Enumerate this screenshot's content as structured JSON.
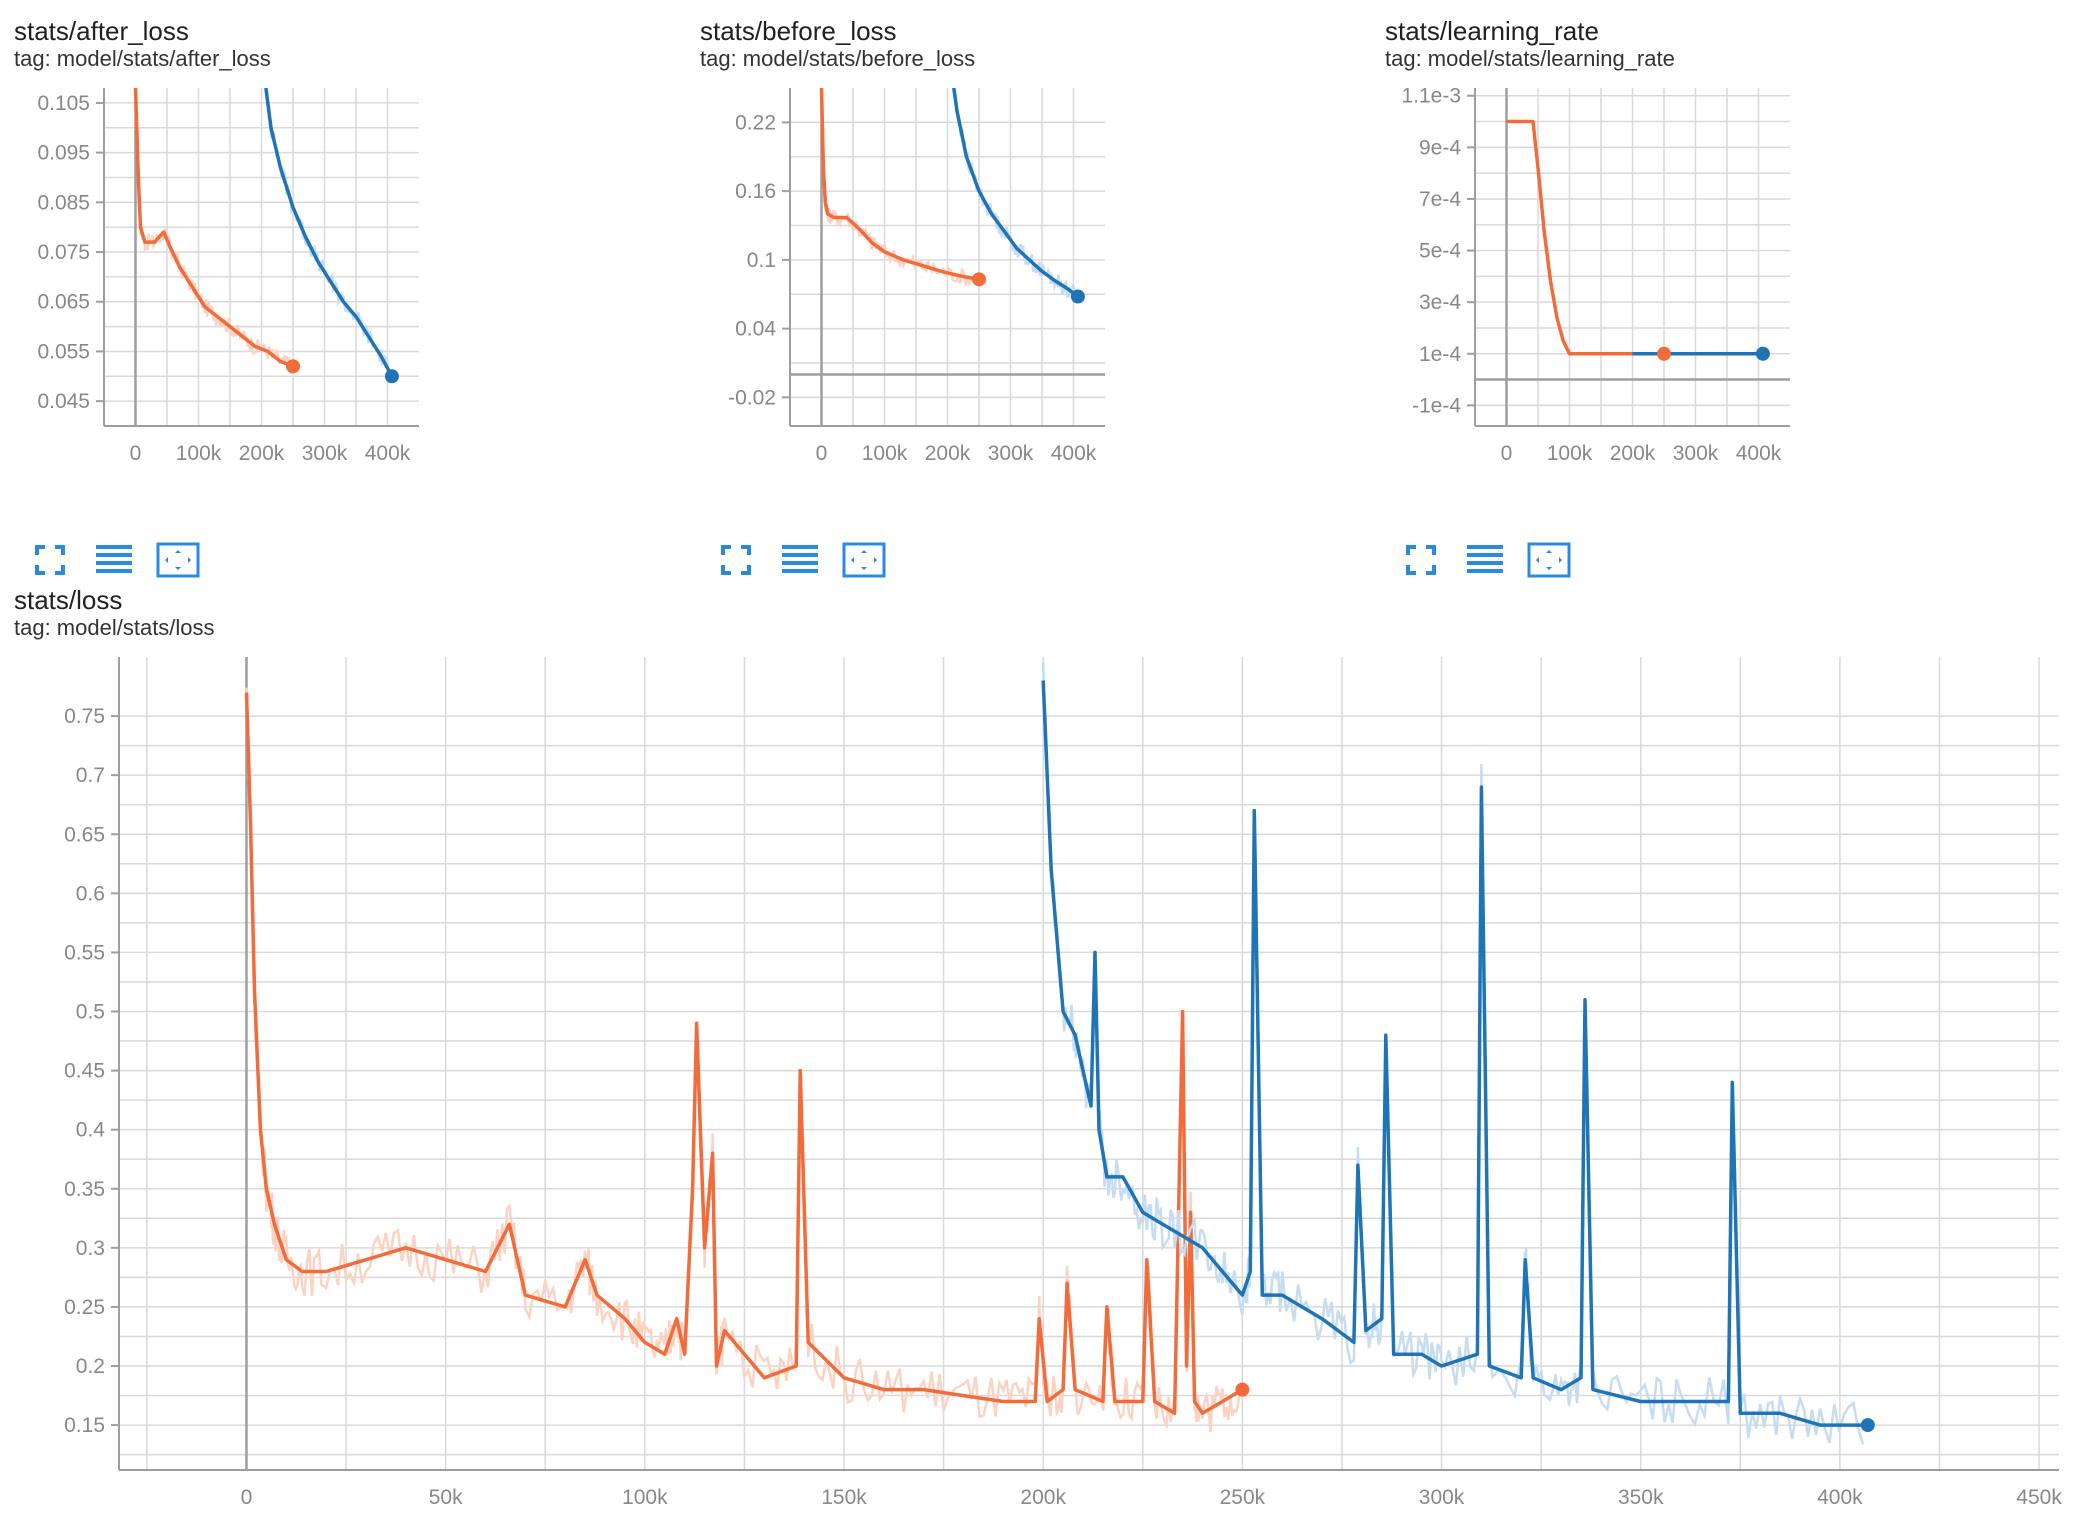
{
  "colors": {
    "run_orange": "#f26b3a",
    "run_orange_light": "#fbd3c3",
    "run_blue": "#1f73b7",
    "run_blue_light": "#c6dcef",
    "toolbar_blue": "#2a8ae0"
  },
  "cards": [
    {
      "title": "stats/after_loss",
      "tag": "tag: model/stats/after_loss",
      "toolbar": [
        "fullscreen-icon",
        "data-list-icon",
        "fit-domain-icon"
      ]
    },
    {
      "title": "stats/before_loss",
      "tag": "tag: model/stats/before_loss",
      "toolbar": [
        "fullscreen-icon",
        "data-list-icon",
        "fit-domain-icon"
      ]
    },
    {
      "title": "stats/learning_rate",
      "tag": "tag: model/stats/learning_rate",
      "toolbar": [
        "fullscreen-icon",
        "data-list-icon",
        "fit-domain-icon"
      ]
    },
    {
      "title": "stats/loss",
      "tag": "tag: model/stats/loss"
    }
  ],
  "chart_data": [
    {
      "type": "line",
      "grid": true,
      "xlim": [
        -50000,
        450000
      ],
      "ylim": [
        0.04,
        0.108
      ],
      "xticks": [
        {
          "v": 0,
          "label": "0"
        },
        {
          "v": 100000,
          "label": "100k"
        },
        {
          "v": 200000,
          "label": "200k"
        },
        {
          "v": 300000,
          "label": "300k"
        },
        {
          "v": 400000,
          "label": "400k"
        }
      ],
      "yticks": [
        {
          "v": 0.105,
          "label": "0.105"
        },
        {
          "v": 0.095,
          "label": "0.095"
        },
        {
          "v": 0.085,
          "label": "0.085"
        },
        {
          "v": 0.075,
          "label": "0.075"
        },
        {
          "v": 0.065,
          "label": "0.065"
        },
        {
          "v": 0.055,
          "label": "0.055"
        },
        {
          "v": 0.045,
          "label": "0.045"
        }
      ],
      "series": [
        {
          "color": "orange",
          "x": [
            0,
            5000,
            8000,
            15000,
            30000,
            45000,
            55000,
            70000,
            90000,
            110000,
            130000,
            150000,
            170000,
            190000,
            210000,
            230000,
            250000
          ],
          "y": [
            0.108,
            0.088,
            0.08,
            0.077,
            0.077,
            0.079,
            0.076,
            0.072,
            0.068,
            0.064,
            0.062,
            0.06,
            0.058,
            0.056,
            0.055,
            0.053,
            0.052
          ]
        },
        {
          "color": "blue",
          "x": [
            207000,
            215000,
            230000,
            250000,
            270000,
            290000,
            310000,
            330000,
            350000,
            370000,
            390000,
            407000
          ],
          "y": [
            0.108,
            0.1,
            0.092,
            0.084,
            0.078,
            0.073,
            0.069,
            0.065,
            0.062,
            0.058,
            0.054,
            0.05
          ]
        }
      ]
    },
    {
      "type": "line",
      "grid": true,
      "xlim": [
        -50000,
        450000
      ],
      "ylim": [
        -0.045,
        0.25
      ],
      "xticks": [
        {
          "v": 0,
          "label": "0"
        },
        {
          "v": 100000,
          "label": "100k"
        },
        {
          "v": 200000,
          "label": "200k"
        },
        {
          "v": 300000,
          "label": "300k"
        },
        {
          "v": 400000,
          "label": "400k"
        }
      ],
      "yticks": [
        {
          "v": 0.22,
          "label": "0.22"
        },
        {
          "v": 0.16,
          "label": "0.16"
        },
        {
          "v": 0.1,
          "label": "0.1"
        },
        {
          "v": 0.04,
          "label": "0.04"
        },
        {
          "v": -0.02,
          "label": "-0.02"
        }
      ],
      "series": [
        {
          "color": "orange",
          "x": [
            0,
            3000,
            6000,
            10000,
            20000,
            40000,
            60000,
            80000,
            100000,
            130000,
            160000,
            190000,
            220000,
            250000
          ],
          "y": [
            0.25,
            0.18,
            0.15,
            0.14,
            0.137,
            0.137,
            0.127,
            0.115,
            0.107,
            0.1,
            0.095,
            0.09,
            0.086,
            0.083
          ]
        },
        {
          "color": "blue",
          "x": [
            210000,
            215000,
            230000,
            250000,
            270000,
            290000,
            310000,
            330000,
            350000,
            370000,
            390000,
            407000
          ],
          "y": [
            0.25,
            0.23,
            0.19,
            0.16,
            0.14,
            0.125,
            0.11,
            0.1,
            0.09,
            0.082,
            0.075,
            0.068
          ]
        }
      ]
    },
    {
      "type": "line",
      "grid": true,
      "xlim": [
        -50000,
        450000
      ],
      "ylim": [
        -0.00018,
        0.00113
      ],
      "xticks": [
        {
          "v": 0,
          "label": "0"
        },
        {
          "v": 100000,
          "label": "100k"
        },
        {
          "v": 200000,
          "label": "200k"
        },
        {
          "v": 300000,
          "label": "300k"
        },
        {
          "v": 400000,
          "label": "400k"
        }
      ],
      "yticks": [
        {
          "v": 0.0011,
          "label": "1.1e-3"
        },
        {
          "v": 0.0009,
          "label": "9e-4"
        },
        {
          "v": 0.0007,
          "label": "7e-4"
        },
        {
          "v": 0.0005,
          "label": "5e-4"
        },
        {
          "v": 0.0003,
          "label": "3e-4"
        },
        {
          "v": 0.0001,
          "label": "1e-4"
        },
        {
          "v": -0.0001,
          "label": "-1e-4"
        }
      ],
      "series": [
        {
          "color": "orange",
          "x": [
            0,
            42000,
            50000,
            60000,
            70000,
            80000,
            90000,
            100000,
            200000,
            250000
          ],
          "y": [
            0.001,
            0.001,
            0.00082,
            0.00057,
            0.00038,
            0.00024,
            0.00015,
            0.0001,
            0.0001,
            0.0001
          ]
        },
        {
          "color": "blue",
          "x": [
            200000,
            407000
          ],
          "y": [
            0.0001,
            0.0001
          ]
        }
      ]
    },
    {
      "type": "line",
      "grid": true,
      "xlim": [
        -32000,
        455000
      ],
      "ylim": [
        0.112,
        0.8
      ],
      "xticks": [
        {
          "v": 0,
          "label": "0"
        },
        {
          "v": 50000,
          "label": "50k"
        },
        {
          "v": 100000,
          "label": "100k"
        },
        {
          "v": 150000,
          "label": "150k"
        },
        {
          "v": 200000,
          "label": "200k"
        },
        {
          "v": 250000,
          "label": "250k"
        },
        {
          "v": 300000,
          "label": "300k"
        },
        {
          "v": 350000,
          "label": "350k"
        },
        {
          "v": 400000,
          "label": "400k"
        },
        {
          "v": 450000,
          "label": "450k"
        }
      ],
      "yticks": [
        {
          "v": 0.75,
          "label": "0.75"
        },
        {
          "v": 0.7,
          "label": "0.7"
        },
        {
          "v": 0.65,
          "label": "0.65"
        },
        {
          "v": 0.6,
          "label": "0.6"
        },
        {
          "v": 0.55,
          "label": "0.55"
        },
        {
          "v": 0.5,
          "label": "0.5"
        },
        {
          "v": 0.45,
          "label": "0.45"
        },
        {
          "v": 0.4,
          "label": "0.4"
        },
        {
          "v": 0.35,
          "label": "0.35"
        },
        {
          "v": 0.3,
          "label": "0.3"
        },
        {
          "v": 0.25,
          "label": "0.25"
        },
        {
          "v": 0.2,
          "label": "0.2"
        },
        {
          "v": 0.15,
          "label": "0.15"
        }
      ],
      "series": [
        {
          "color": "orange",
          "x": [
            0,
            1000,
            2000,
            3500,
            5000,
            7000,
            10000,
            14000,
            20000,
            30000,
            40000,
            50000,
            60000,
            66000,
            70000,
            80000,
            85000,
            88000,
            95000,
            100000,
            105000,
            108000,
            110000,
            112000,
            113000,
            115000,
            117000,
            118000,
            120000,
            130000,
            138000,
            139000,
            141000,
            150000,
            160000,
            170000,
            180000,
            190000,
            198000,
            199000,
            201000,
            205000,
            206000,
            208000,
            215000,
            216000,
            218000,
            225000,
            226000,
            228000,
            233000,
            235000,
            236000,
            237000,
            238000,
            240000,
            245000,
            250000
          ],
          "y": [
            0.77,
            0.66,
            0.52,
            0.4,
            0.35,
            0.32,
            0.29,
            0.28,
            0.28,
            0.29,
            0.3,
            0.29,
            0.28,
            0.32,
            0.26,
            0.25,
            0.29,
            0.26,
            0.24,
            0.22,
            0.21,
            0.24,
            0.21,
            0.35,
            0.49,
            0.3,
            0.38,
            0.2,
            0.23,
            0.19,
            0.2,
            0.45,
            0.22,
            0.19,
            0.18,
            0.18,
            0.175,
            0.17,
            0.17,
            0.24,
            0.17,
            0.18,
            0.27,
            0.18,
            0.17,
            0.25,
            0.17,
            0.17,
            0.29,
            0.17,
            0.16,
            0.5,
            0.2,
            0.33,
            0.17,
            0.16,
            0.17,
            0.18
          ]
        },
        {
          "color": "blue",
          "x": [
            200000,
            202000,
            205000,
            208000,
            210000,
            212000,
            213000,
            214000,
            216000,
            220000,
            225000,
            230000,
            235000,
            240000,
            245000,
            250000,
            252000,
            253000,
            255000,
            260000,
            270000,
            278000,
            279000,
            281000,
            285000,
            286000,
            288000,
            295000,
            300000,
            309000,
            310000,
            312000,
            320000,
            321000,
            323000,
            330000,
            335000,
            336000,
            338000,
            350000,
            360000,
            372000,
            373000,
            375000,
            385000,
            395000,
            407000
          ],
          "y": [
            0.78,
            0.62,
            0.5,
            0.48,
            0.45,
            0.42,
            0.55,
            0.4,
            0.36,
            0.36,
            0.33,
            0.32,
            0.31,
            0.3,
            0.28,
            0.26,
            0.28,
            0.67,
            0.26,
            0.26,
            0.24,
            0.22,
            0.37,
            0.23,
            0.24,
            0.48,
            0.21,
            0.21,
            0.2,
            0.21,
            0.69,
            0.2,
            0.19,
            0.29,
            0.19,
            0.18,
            0.19,
            0.51,
            0.18,
            0.17,
            0.17,
            0.17,
            0.44,
            0.16,
            0.16,
            0.15,
            0.15
          ]
        }
      ]
    }
  ]
}
